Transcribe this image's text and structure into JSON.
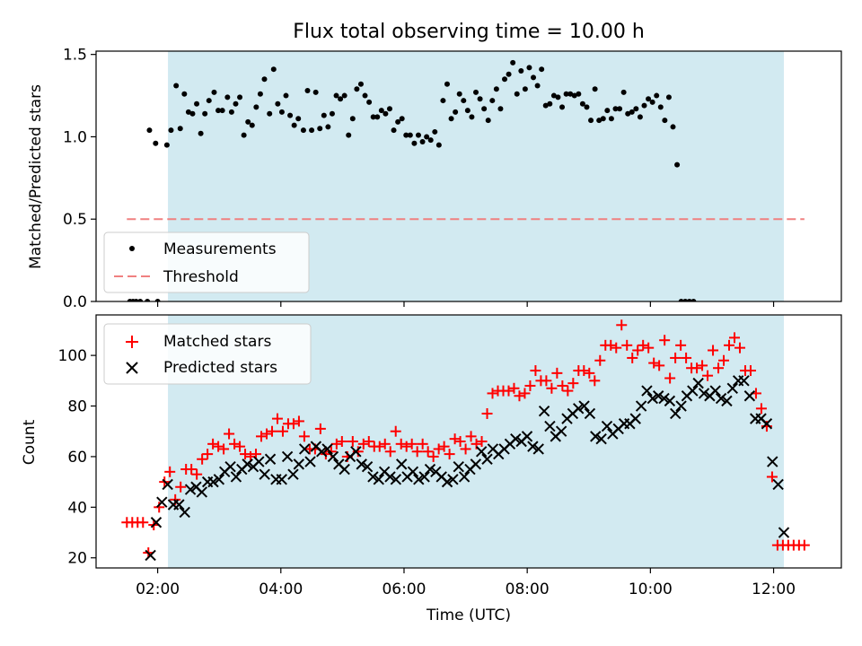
{
  "chart_data": [
    {
      "type": "scatter",
      "title": "Flux total observing time = 10.00 h",
      "xlabel": "",
      "ylabel": "Matched/Predicted stars",
      "xlim": [
        "01:00",
        "13:06"
      ],
      "ylim": [
        0,
        1.52
      ],
      "yticks": [
        0.0,
        0.5,
        1.0,
        1.5
      ],
      "ytick_labels": [
        "0.0",
        "0.5",
        "1.0",
        "1.5"
      ],
      "shaded_region": {
        "x": [
          "02:10",
          "12:10"
        ],
        "color": "#add8e6"
      },
      "legend": {
        "position": "lower-left",
        "entries": [
          "Measurements",
          "Threshold"
        ]
      },
      "series": [
        {
          "name": "Measurements",
          "marker": "dot",
          "color": "#000000",
          "points": [
            [
              "01:33",
              0
            ],
            [
              "01:36",
              0
            ],
            [
              "01:39",
              0
            ],
            [
              "01:43",
              0
            ],
            [
              "01:50",
              0
            ],
            [
              "02:00",
              0
            ],
            [
              "01:52",
              1.04
            ],
            [
              "01:58",
              0.96
            ],
            [
              "02:09",
              0.95
            ],
            [
              "02:13",
              1.04
            ],
            [
              "02:18",
              1.31
            ],
            [
              "02:22",
              1.05
            ],
            [
              "02:26",
              1.26
            ],
            [
              "02:30",
              1.15
            ],
            [
              "02:34",
              1.14
            ],
            [
              "02:38",
              1.2
            ],
            [
              "02:42",
              1.02
            ],
            [
              "02:46",
              1.14
            ],
            [
              "02:50",
              1.22
            ],
            [
              "02:55",
              1.27
            ],
            [
              "02:59",
              1.16
            ],
            [
              "03:03",
              1.16
            ],
            [
              "03:08",
              1.24
            ],
            [
              "03:12",
              1.15
            ],
            [
              "03:16",
              1.2
            ],
            [
              "03:20",
              1.24
            ],
            [
              "03:24",
              1.01
            ],
            [
              "03:28",
              1.09
            ],
            [
              "03:32",
              1.07
            ],
            [
              "03:36",
              1.18
            ],
            [
              "03:40",
              1.26
            ],
            [
              "03:44",
              1.35
            ],
            [
              "03:49",
              1.14
            ],
            [
              "03:53",
              1.41
            ],
            [
              "03:57",
              1.2
            ],
            [
              "04:01",
              1.15
            ],
            [
              "04:05",
              1.25
            ],
            [
              "04:09",
              1.13
            ],
            [
              "04:13",
              1.07
            ],
            [
              "04:17",
              1.11
            ],
            [
              "04:22",
              1.04
            ],
            [
              "04:26",
              1.28
            ],
            [
              "04:30",
              1.04
            ],
            [
              "04:34",
              1.27
            ],
            [
              "04:38",
              1.05
            ],
            [
              "04:42",
              1.13
            ],
            [
              "04:46",
              1.06
            ],
            [
              "04:50",
              1.14
            ],
            [
              "04:54",
              1.25
            ],
            [
              "04:58",
              1.23
            ],
            [
              "05:02",
              1.25
            ],
            [
              "05:06",
              1.01
            ],
            [
              "05:10",
              1.11
            ],
            [
              "05:14",
              1.29
            ],
            [
              "05:18",
              1.32
            ],
            [
              "05:22",
              1.25
            ],
            [
              "05:26",
              1.21
            ],
            [
              "05:30",
              1.12
            ],
            [
              "05:34",
              1.12
            ],
            [
              "05:38",
              1.16
            ],
            [
              "05:42",
              1.14
            ],
            [
              "05:46",
              1.17
            ],
            [
              "05:50",
              1.04
            ],
            [
              "05:54",
              1.09
            ],
            [
              "05:58",
              1.11
            ],
            [
              "06:02",
              1.01
            ],
            [
              "06:06",
              1.01
            ],
            [
              "06:10",
              0.96
            ],
            [
              "06:14",
              1.01
            ],
            [
              "06:18",
              0.97
            ],
            [
              "06:22",
              1.0
            ],
            [
              "06:26",
              0.98
            ],
            [
              "06:30",
              1.03
            ],
            [
              "06:34",
              0.95
            ],
            [
              "06:38",
              1.22
            ],
            [
              "06:42",
              1.32
            ],
            [
              "06:46",
              1.11
            ],
            [
              "06:50",
              1.15
            ],
            [
              "06:54",
              1.26
            ],
            [
              "06:58",
              1.22
            ],
            [
              "07:02",
              1.16
            ],
            [
              "07:06",
              1.12
            ],
            [
              "07:10",
              1.27
            ],
            [
              "07:14",
              1.23
            ],
            [
              "07:18",
              1.17
            ],
            [
              "07:22",
              1.1
            ],
            [
              "07:26",
              1.22
            ],
            [
              "07:30",
              1.29
            ],
            [
              "07:34",
              1.17
            ],
            [
              "07:38",
              1.35
            ],
            [
              "07:42",
              1.38
            ],
            [
              "07:46",
              1.45
            ],
            [
              "07:50",
              1.26
            ],
            [
              "07:54",
              1.4
            ],
            [
              "07:58",
              1.29
            ],
            [
              "08:02",
              1.42
            ],
            [
              "08:06",
              1.36
            ],
            [
              "08:10",
              1.31
            ],
            [
              "08:14",
              1.41
            ],
            [
              "08:18",
              1.19
            ],
            [
              "08:22",
              1.2
            ],
            [
              "08:26",
              1.25
            ],
            [
              "08:30",
              1.24
            ],
            [
              "08:34",
              1.18
            ],
            [
              "08:38",
              1.26
            ],
            [
              "08:42",
              1.26
            ],
            [
              "08:46",
              1.25
            ],
            [
              "08:50",
              1.26
            ],
            [
              "08:54",
              1.2
            ],
            [
              "08:58",
              1.18
            ],
            [
              "09:02",
              1.1
            ],
            [
              "09:06",
              1.29
            ],
            [
              "09:10",
              1.1
            ],
            [
              "09:14",
              1.11
            ],
            [
              "09:18",
              1.16
            ],
            [
              "09:22",
              1.11
            ],
            [
              "09:26",
              1.17
            ],
            [
              "09:30",
              1.17
            ],
            [
              "09:34",
              1.27
            ],
            [
              "09:38",
              1.14
            ],
            [
              "09:42",
              1.15
            ],
            [
              "09:46",
              1.17
            ],
            [
              "09:50",
              1.12
            ],
            [
              "09:54",
              1.19
            ],
            [
              "09:58",
              1.23
            ],
            [
              "10:02",
              1.21
            ],
            [
              "10:06",
              1.25
            ],
            [
              "10:10",
              1.18
            ],
            [
              "10:14",
              1.1
            ],
            [
              "10:18",
              1.24
            ],
            [
              "10:22",
              1.06
            ],
            [
              "10:26",
              0.83
            ],
            [
              "10:30",
              0
            ],
            [
              "10:34",
              0
            ],
            [
              "10:38",
              0
            ],
            [
              "10:42",
              0
            ]
          ]
        },
        {
          "name": "Threshold",
          "line_style": "dashed",
          "color": "#f08080",
          "points": [
            [
              "01:30",
              0.5
            ],
            [
              "12:30",
              0.5
            ]
          ]
        }
      ]
    },
    {
      "type": "scatter",
      "title": "",
      "xlabel": "Time (UTC)",
      "ylabel": "Count",
      "xlim": [
        "01:00",
        "13:06"
      ],
      "ylim": [
        16,
        116
      ],
      "yticks": [
        20,
        40,
        60,
        80,
        100
      ],
      "xticks": [
        "02:00",
        "04:00",
        "06:00",
        "08:00",
        "10:00",
        "12:00"
      ],
      "shaded_region": {
        "x": [
          "02:10",
          "12:10"
        ],
        "color": "#add8e6"
      },
      "legend": {
        "position": "top-left",
        "entries": [
          "Matched stars",
          "Predicted stars"
        ]
      },
      "series": [
        {
          "name": "Matched stars",
          "marker": "plus",
          "color": "#ff0000",
          "values": [
            34,
            34,
            34,
            34,
            22,
            33,
            40,
            50,
            54,
            43,
            48,
            55,
            55,
            53,
            59,
            61,
            65,
            64,
            63,
            69,
            65,
            64,
            61,
            60,
            61,
            68,
            69,
            70,
            75,
            70,
            73,
            73,
            74,
            68,
            63,
            63,
            71,
            61,
            62,
            65,
            66,
            60,
            66,
            62,
            65,
            66,
            64,
            64,
            65,
            62,
            70,
            65,
            64,
            65,
            62,
            65,
            62,
            60,
            63,
            64,
            61,
            67,
            66,
            63,
            68,
            65,
            66,
            77,
            85,
            86,
            86,
            86,
            87,
            84,
            85,
            88,
            94,
            90,
            90,
            87,
            93,
            88,
            86,
            89,
            94,
            94,
            93,
            90,
            98,
            104,
            104,
            103,
            112,
            104,
            99,
            102,
            104,
            103,
            97,
            96,
            106,
            91,
            99,
            104,
            99,
            95,
            95,
            96,
            92,
            102,
            95,
            98,
            104,
            107,
            103,
            94,
            94,
            85,
            79,
            72,
            52,
            25,
            25,
            25,
            25,
            25,
            25
          ],
          "x_start": "01:30",
          "x_end": "12:30"
        },
        {
          "name": "Predicted stars",
          "marker": "x",
          "color": "#000000",
          "values": [
            21,
            34,
            42,
            49,
            41,
            41,
            38,
            47,
            48,
            46,
            50,
            50,
            51,
            54,
            56,
            52,
            55,
            57,
            56,
            58,
            53,
            59,
            51,
            51,
            60,
            53,
            57,
            63,
            58,
            64,
            62,
            63,
            60,
            57,
            55,
            60,
            62,
            57,
            56,
            52,
            51,
            54,
            52,
            51,
            57,
            52,
            54,
            51,
            52,
            55,
            54,
            52,
            50,
            51,
            56,
            52,
            55,
            57,
            62,
            59,
            63,
            61,
            63,
            65,
            67,
            66,
            68,
            64,
            63,
            78,
            72,
            68,
            70,
            75,
            77,
            79,
            80,
            77,
            68,
            67,
            72,
            69,
            71,
            73,
            73,
            75,
            80,
            86,
            83,
            84,
            83,
            82,
            77,
            80,
            84,
            86,
            89,
            85,
            84,
            86,
            83,
            82,
            87,
            90,
            90,
            84,
            75,
            75,
            73,
            58,
            49,
            30
          ],
          "x_start": "01:53",
          "x_end": "12:10"
        }
      ]
    }
  ]
}
